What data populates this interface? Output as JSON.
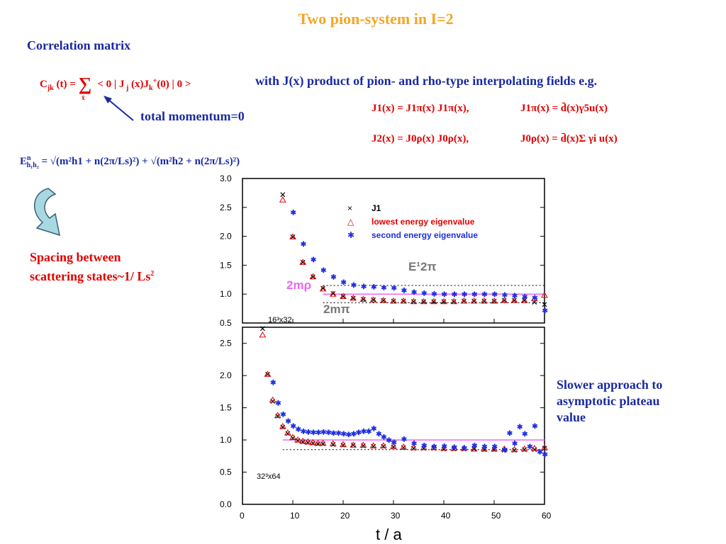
{
  "slide": {
    "title": "Two pion-system in I=2",
    "section_heading": "Correlation matrix",
    "correlator_lhs": "C",
    "correlator_rhs": "< 0 | J",
    "with_text": "with J(x)  product of  pion- and rho-type interpolating fields e.g.",
    "total_momentum": "total momentum=0",
    "j1_def": "J1(x) = J1π(x) J1π(x),",
    "j1pi_def": "J1π(x) = d̄(x)γ5u(x)",
    "j2_def": "J2(x) = J0ρ(x) J0ρ(x),",
    "j0rho_def": "J0ρ(x) = d̄(x)Σ γi u(x)",
    "energy_formula_rhs": "= √(m²h1 + n(2π/Ls)²) + √(m²h2 + n(2π/Ls)²)",
    "spacing_note_line1": "Spacing between",
    "spacing_note_line2": "scattering states~1/ Ls",
    "spacing_exp": "2",
    "slower_note_line1": "Slower approach to",
    "slower_note_line2": "asymptotic plateau",
    "slower_note_line3": "value"
  },
  "colors": {
    "title": "#f5a623",
    "heading": "#1a2aa0",
    "equation": "#e00000",
    "j1": "#000000",
    "lowest": "#e00000",
    "second": "#1f2fe0",
    "rho_line": "#ee66ee"
  },
  "chart_data": [
    {
      "type": "scatter",
      "lattice": "16³x32",
      "ylim": [
        0.5,
        3.0
      ],
      "xlim": [
        0,
        60
      ],
      "yticks": [
        "3.0",
        "2.5",
        "2.0",
        "1.5",
        "1.0",
        "0.5"
      ],
      "legend": [
        {
          "marker": "×",
          "label": "J1"
        },
        {
          "marker": "△",
          "label": "lowest  energy  eigenvalue"
        },
        {
          "marker": "✱",
          "label": "second  energy  eigenvalue"
        }
      ],
      "annotations": {
        "e1_2pi": "E¹2π",
        "two_m_rho": "2mρ",
        "two_m_pi": "2mπ"
      },
      "reference_lines": {
        "e1_2pi": 1.15,
        "two_m_rho": 1.0,
        "two_m_pi": 0.85
      },
      "series": [
        {
          "name": "J1",
          "x": [
            8,
            10,
            12,
            14,
            16,
            18,
            20,
            22,
            24,
            26,
            28,
            30,
            32,
            34,
            36,
            38,
            40,
            42,
            44,
            46,
            48,
            50,
            52,
            54,
            56,
            58,
            60
          ],
          "y": [
            2.72,
            1.99,
            1.55,
            1.3,
            1.1,
            1.01,
            0.96,
            0.93,
            0.91,
            0.9,
            0.89,
            0.88,
            0.88,
            0.87,
            0.87,
            0.87,
            0.87,
            0.87,
            0.88,
            0.88,
            0.88,
            0.88,
            0.89,
            0.89,
            0.89,
            0.86,
            0.82
          ]
        },
        {
          "name": "lowest",
          "x": [
            8,
            10,
            12,
            14,
            16,
            18,
            20,
            22,
            24,
            26,
            28,
            30,
            32,
            34,
            36,
            38,
            40,
            42,
            44,
            46,
            48,
            50,
            52,
            54,
            56,
            58,
            60
          ],
          "y": [
            2.63,
            1.99,
            1.55,
            1.3,
            1.09,
            1.0,
            0.96,
            0.93,
            0.91,
            0.9,
            0.89,
            0.88,
            0.88,
            0.87,
            0.87,
            0.87,
            0.87,
            0.87,
            0.88,
            0.88,
            0.88,
            0.88,
            0.89,
            0.89,
            0.89,
            0.92,
            0.98
          ]
        },
        {
          "name": "second",
          "x": [
            10,
            12,
            14,
            16,
            18,
            20,
            22,
            24,
            26,
            28,
            30,
            32,
            34,
            36,
            38,
            40,
            42,
            44,
            46,
            48,
            50,
            52,
            54,
            56,
            58,
            60
          ],
          "y": [
            2.42,
            1.87,
            1.6,
            1.42,
            1.3,
            1.21,
            1.16,
            1.14,
            1.13,
            1.12,
            1.11,
            1.07,
            1.04,
            1.02,
            1.01,
            1.0,
            1.0,
            1.0,
            1.0,
            1.0,
            1.0,
            0.99,
            0.98,
            0.96,
            0.94,
            0.72
          ]
        }
      ]
    },
    {
      "type": "scatter",
      "lattice": "32³x64",
      "ylim": [
        0.0,
        2.75
      ],
      "xlim": [
        0,
        60
      ],
      "yticks": [
        "2.5",
        "2.0",
        "1.5",
        "1.0",
        "0.5",
        "0.0"
      ],
      "xticks": [
        "0",
        "10",
        "20",
        "30",
        "40",
        "50",
        "60"
      ],
      "xlabel": "t / a",
      "reference_lines": {
        "two_m_rho": 1.0,
        "two_m_pi": 0.85
      },
      "series": [
        {
          "name": "J1",
          "x": [
            4,
            5,
            6,
            7,
            8,
            9,
            10,
            11,
            12,
            13,
            14,
            15,
            16,
            18,
            20,
            22,
            24,
            26,
            28,
            30,
            32,
            34,
            36,
            38,
            40,
            42,
            44,
            46,
            48,
            50,
            52,
            54,
            56,
            58,
            60
          ],
          "y": [
            2.73,
            2.02,
            1.6,
            1.37,
            1.2,
            1.1,
            1.03,
            0.99,
            0.97,
            0.96,
            0.95,
            0.94,
            0.94,
            0.93,
            0.92,
            0.92,
            0.91,
            0.9,
            0.9,
            0.89,
            0.88,
            0.87,
            0.87,
            0.87,
            0.86,
            0.86,
            0.86,
            0.86,
            0.85,
            0.85,
            0.84,
            0.84,
            0.85,
            0.85,
            0.87
          ]
        },
        {
          "name": "lowest",
          "x": [
            4,
            5,
            6,
            7,
            8,
            9,
            10,
            11,
            12,
            13,
            14,
            15,
            16,
            18,
            20,
            22,
            24,
            26,
            28,
            30,
            32,
            34,
            36,
            38,
            40,
            42,
            44,
            46,
            48,
            50,
            52,
            54,
            56,
            58,
            60
          ],
          "y": [
            2.63,
            2.02,
            1.62,
            1.38,
            1.21,
            1.11,
            1.04,
            1.0,
            0.98,
            0.97,
            0.96,
            0.95,
            0.95,
            0.94,
            0.93,
            0.92,
            0.92,
            0.91,
            0.91,
            0.9,
            0.89,
            0.88,
            0.88,
            0.88,
            0.87,
            0.87,
            0.87,
            0.86,
            0.86,
            0.86,
            0.86,
            0.85,
            0.86,
            0.87,
            0.88
          ]
        },
        {
          "name": "second",
          "x": [
            6,
            7,
            8,
            9,
            10,
            11,
            12,
            13,
            14,
            15,
            16,
            17,
            18,
            19,
            20,
            21,
            22,
            23,
            24,
            25,
            26,
            27,
            28,
            29,
            30,
            32,
            34,
            36,
            38,
            40,
            42,
            44,
            46,
            48,
            50,
            52,
            53,
            54,
            55,
            56,
            57,
            58,
            59,
            60
          ],
          "y": [
            1.9,
            1.58,
            1.4,
            1.3,
            1.22,
            1.17,
            1.14,
            1.13,
            1.12,
            1.12,
            1.13,
            1.12,
            1.11,
            1.11,
            1.1,
            1.09,
            1.1,
            1.12,
            1.14,
            1.14,
            1.18,
            1.1,
            1.05,
            1.0,
            0.97,
            1.02,
            0.95,
            0.92,
            0.9,
            0.91,
            0.89,
            0.88,
            0.92,
            0.9,
            0.9,
            0.85,
            1.11,
            0.95,
            1.21,
            1.1,
            0.9,
            1.22,
            0.82,
            0.78
          ]
        }
      ]
    }
  ]
}
